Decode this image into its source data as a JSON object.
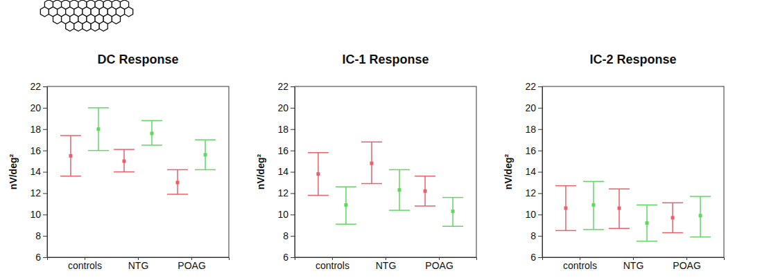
{
  "chart_data": [
    {
      "type": "errorbar",
      "title": "DC Response",
      "y_label": "nV/deg²",
      "categories": [
        "controls",
        "NTG",
        "POAG"
      ],
      "ylim": [
        6,
        22
      ],
      "yticks": [
        6,
        8,
        10,
        12,
        14,
        16,
        18,
        20,
        22
      ],
      "series": [
        {
          "color": "#e8606a",
          "values": [
            15.5,
            15.0,
            13.0
          ],
          "lower": [
            13.6,
            14.0,
            11.9
          ],
          "upper": [
            17.4,
            16.1,
            14.2
          ]
        },
        {
          "color": "#5fd85f",
          "values": [
            18.0,
            17.6,
            15.6
          ],
          "lower": [
            16.0,
            16.5,
            14.2
          ],
          "upper": [
            20.0,
            18.8,
            17.0
          ]
        }
      ]
    },
    {
      "type": "errorbar",
      "title": "IC-1 Response",
      "y_label": "nV/deg²",
      "categories": [
        "controls",
        "NTG",
        "POAG"
      ],
      "ylim": [
        6,
        22
      ],
      "yticks": [
        6,
        8,
        10,
        12,
        14,
        16,
        18,
        20,
        22
      ],
      "series": [
        {
          "color": "#e8606a",
          "values": [
            13.8,
            14.8,
            12.2
          ],
          "lower": [
            11.8,
            12.9,
            10.8
          ],
          "upper": [
            15.8,
            16.8,
            13.6
          ]
        },
        {
          "color": "#5fd85f",
          "values": [
            10.9,
            12.3,
            10.3
          ],
          "lower": [
            9.1,
            10.4,
            8.9
          ],
          "upper": [
            12.6,
            14.2,
            11.6
          ]
        }
      ]
    },
    {
      "type": "errorbar",
      "title": "IC-2 Response",
      "y_label": "nV/deg²",
      "categories": [
        "controls",
        "NTG",
        "POAG"
      ],
      "ylim": [
        6,
        22
      ],
      "yticks": [
        6,
        8,
        10,
        12,
        14,
        16,
        18,
        20,
        22
      ],
      "series": [
        {
          "color": "#e8606a",
          "values": [
            10.6,
            10.6,
            9.7
          ],
          "lower": [
            8.5,
            8.7,
            8.3
          ],
          "upper": [
            12.7,
            12.4,
            11.1
          ]
        },
        {
          "color": "#5fd85f",
          "values": [
            10.9,
            9.2,
            9.9
          ],
          "lower": [
            8.6,
            7.5,
            7.9
          ],
          "upper": [
            13.1,
            10.9,
            11.7
          ]
        }
      ]
    }
  ]
}
